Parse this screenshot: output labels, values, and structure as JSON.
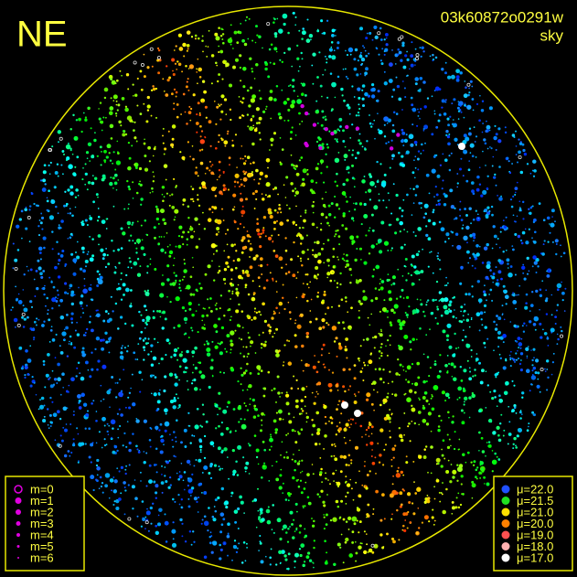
{
  "corner_label": "NE",
  "image_id": "03k60872o0291w",
  "view": "sky",
  "magnitude_legend": {
    "color": "#e000e0",
    "items": [
      "m=0",
      "m=1",
      "m=2",
      "m=3",
      "m=4",
      "m=5",
      "m=6"
    ]
  },
  "brightness_legend": {
    "items": [
      {
        "label": "μ=22.0",
        "color": "#2050ff"
      },
      {
        "label": "μ=21.5",
        "color": "#20e020"
      },
      {
        "label": "μ=21.0",
        "color": "#ffe000"
      },
      {
        "label": "μ=20.0",
        "color": "#ff8000"
      },
      {
        "label": "μ=19.0",
        "color": "#ff5050"
      },
      {
        "label": "μ=18.0",
        "color": "#ffb0b0"
      },
      {
        "label": "μ=17.0",
        "color": "#ffffff"
      }
    ]
  }
}
